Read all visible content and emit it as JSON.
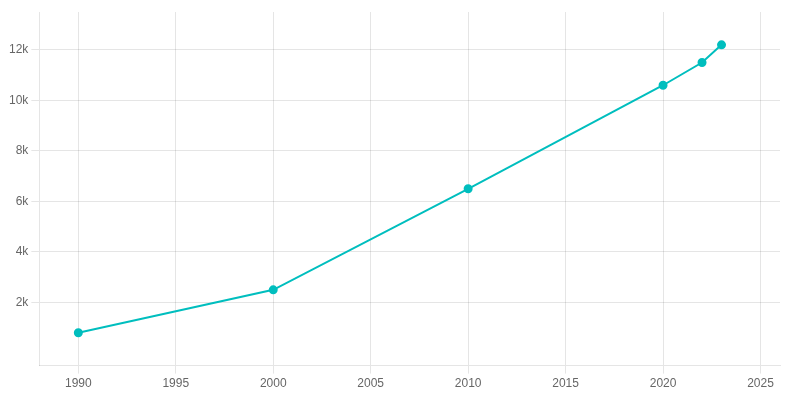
{
  "chart_data": {
    "type": "line",
    "x": [
      1990,
      2000,
      2010,
      2020,
      2022,
      2023
    ],
    "values": [
      800,
      2500,
      6500,
      10600,
      11500,
      12200
    ],
    "color": "#00BEBE",
    "marker": "circle",
    "line_style": "solid",
    "xlim": [
      1988,
      2026
    ],
    "xticks": [
      1990,
      1995,
      2000,
      2005,
      2010,
      2015,
      2020,
      2025
    ],
    "ylim": [
      -500,
      13500
    ],
    "yticks": [
      {
        "value": 2000,
        "label": "2k"
      },
      {
        "value": 4000,
        "label": "4k"
      },
      {
        "value": 6000,
        "label": "6k"
      },
      {
        "value": 8000,
        "label": "8k"
      },
      {
        "value": 10000,
        "label": "10k"
      },
      {
        "value": 12000,
        "label": "12k"
      }
    ],
    "grid": true
  }
}
